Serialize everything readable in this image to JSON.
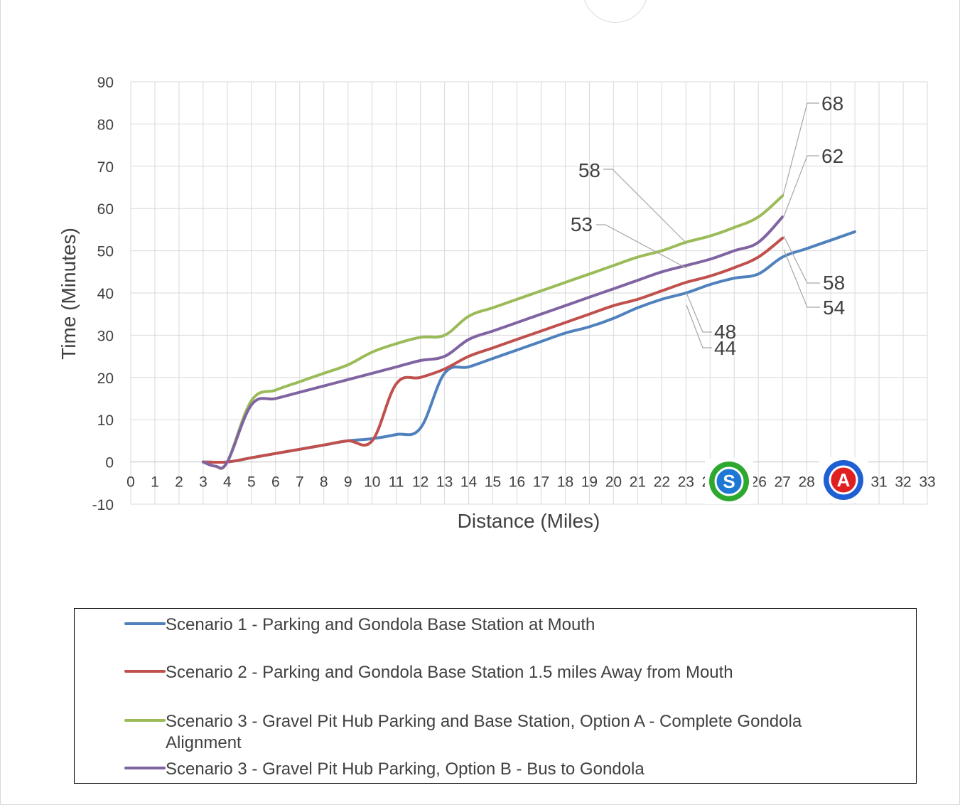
{
  "chart_data": {
    "type": "line",
    "title": "",
    "xlabel": "Distance (Miles)",
    "ylabel": "Time (Minutes)",
    "xlim": [
      0,
      33
    ],
    "ylim": [
      -10,
      90
    ],
    "x_ticks": [
      0,
      1,
      2,
      3,
      4,
      5,
      6,
      7,
      8,
      9,
      10,
      11,
      12,
      13,
      14,
      15,
      16,
      17,
      18,
      19,
      20,
      21,
      22,
      23,
      24,
      25,
      26,
      27,
      28,
      29,
      30,
      31,
      32,
      33
    ],
    "y_ticks": [
      -10,
      0,
      10,
      20,
      30,
      40,
      50,
      60,
      70,
      80,
      90
    ],
    "grid": true,
    "legend_position": "bottom",
    "series": [
      {
        "name": "Scenario 1 - Parking and Gondola Base Station at Mouth",
        "color": "#4f81bd",
        "points": [
          [
            3,
            0
          ],
          [
            4,
            0
          ],
          [
            5,
            1
          ],
          [
            6,
            2
          ],
          [
            7,
            3
          ],
          [
            8,
            4
          ],
          [
            9,
            5
          ],
          [
            10,
            5.5
          ],
          [
            11,
            6.5
          ],
          [
            12,
            8
          ],
          [
            13,
            21
          ],
          [
            14,
            22.5
          ],
          [
            15,
            24.5
          ],
          [
            16,
            26.5
          ],
          [
            17,
            28.5
          ],
          [
            18,
            30.5
          ],
          [
            19,
            32
          ],
          [
            20,
            34
          ],
          [
            21,
            36.5
          ],
          [
            22,
            38.5
          ],
          [
            23,
            40
          ],
          [
            24,
            42
          ],
          [
            25,
            43.5
          ],
          [
            26,
            44.5
          ],
          [
            27,
            48.5
          ],
          [
            28,
            50.5
          ],
          [
            29,
            52.5
          ],
          [
            30,
            54.5
          ]
        ]
      },
      {
        "name": "Scenario 2 - Parking and Gondola Base Station 1.5 miles Away from Mouth",
        "color": "#c0504d",
        "points": [
          [
            3,
            0
          ],
          [
            4,
            0
          ],
          [
            5,
            1
          ],
          [
            6,
            2
          ],
          [
            7,
            3
          ],
          [
            8,
            4
          ],
          [
            9,
            5
          ],
          [
            10,
            5
          ],
          [
            11,
            18.5
          ],
          [
            12,
            20
          ],
          [
            13,
            22
          ],
          [
            14,
            25
          ],
          [
            15,
            27
          ],
          [
            16,
            29
          ],
          [
            17,
            31
          ],
          [
            18,
            33
          ],
          [
            19,
            35
          ],
          [
            20,
            37
          ],
          [
            21,
            38.5
          ],
          [
            22,
            40.5
          ],
          [
            23,
            42.5
          ],
          [
            24,
            44
          ],
          [
            25,
            46
          ],
          [
            26,
            48.5
          ],
          [
            27,
            53
          ]
        ]
      },
      {
        "name": "Scenario 3 - Gravel Pit Hub Parking and Base Station, Option A - Complete Gondola Alignment",
        "color": "#9bbb59",
        "points": [
          [
            3,
            0
          ],
          [
            3.5,
            -1
          ],
          [
            4,
            0
          ],
          [
            5,
            14.5
          ],
          [
            6,
            17
          ],
          [
            7,
            19
          ],
          [
            8,
            21
          ],
          [
            9,
            23
          ],
          [
            10,
            26
          ],
          [
            11,
            28
          ],
          [
            12,
            29.5
          ],
          [
            13,
            30
          ],
          [
            14,
            34.5
          ],
          [
            15,
            36.5
          ],
          [
            16,
            38.5
          ],
          [
            17,
            40.5
          ],
          [
            18,
            42.5
          ],
          [
            19,
            44.5
          ],
          [
            20,
            46.5
          ],
          [
            21,
            48.5
          ],
          [
            22,
            50
          ],
          [
            23,
            52
          ],
          [
            24,
            53.5
          ],
          [
            25,
            55.5
          ],
          [
            26,
            58
          ],
          [
            27,
            63
          ]
        ]
      },
      {
        "name": "Scenario 3 - Gravel Pit Hub Parking, Option B - Bus to Gondola",
        "color": "#8064a2",
        "points": [
          [
            3,
            0
          ],
          [
            3.5,
            -1
          ],
          [
            4,
            0
          ],
          [
            5,
            13.5
          ],
          [
            6,
            15
          ],
          [
            7,
            16.5
          ],
          [
            8,
            18
          ],
          [
            9,
            19.5
          ],
          [
            10,
            21
          ],
          [
            11,
            22.5
          ],
          [
            12,
            24
          ],
          [
            13,
            25
          ],
          [
            14,
            29
          ],
          [
            15,
            31
          ],
          [
            16,
            33
          ],
          [
            17,
            35
          ],
          [
            18,
            37
          ],
          [
            19,
            39
          ],
          [
            20,
            41
          ],
          [
            21,
            43
          ],
          [
            22,
            45
          ],
          [
            23,
            46.5
          ],
          [
            24,
            48
          ],
          [
            25,
            50
          ],
          [
            26,
            52
          ],
          [
            27,
            58
          ]
        ]
      }
    ],
    "data_labels": [
      {
        "text": "68"
      },
      {
        "text": "62"
      },
      {
        "text": "58"
      },
      {
        "text": "53"
      },
      {
        "text": "58"
      },
      {
        "text": "54"
      },
      {
        "text": "48"
      },
      {
        "text": "44"
      }
    ],
    "markers": [
      {
        "letter": "S",
        "fill": "#1f77d4",
        "ring": "#2ea82e"
      },
      {
        "letter": "A",
        "fill": "#e02020",
        "ring": "#1f5fd4"
      }
    ]
  },
  "legend": {
    "items": [
      {
        "label": "Scenario 1 - Parking and Gondola Base Station at Mouth",
        "color": "#4f81bd"
      },
      {
        "label": "Scenario 2 - Parking and Gondola Base Station 1.5 miles Away from Mouth",
        "color": "#c0504d"
      },
      {
        "label": "Scenario 3 - Gravel Pit Hub Parking and Base Station, Option A - Complete Gondola Alignment",
        "color": "#9bbb59"
      },
      {
        "label": "Scenario 3 - Gravel Pit Hub Parking, Option B - Bus to Gondola",
        "color": "#8064a2"
      }
    ]
  }
}
